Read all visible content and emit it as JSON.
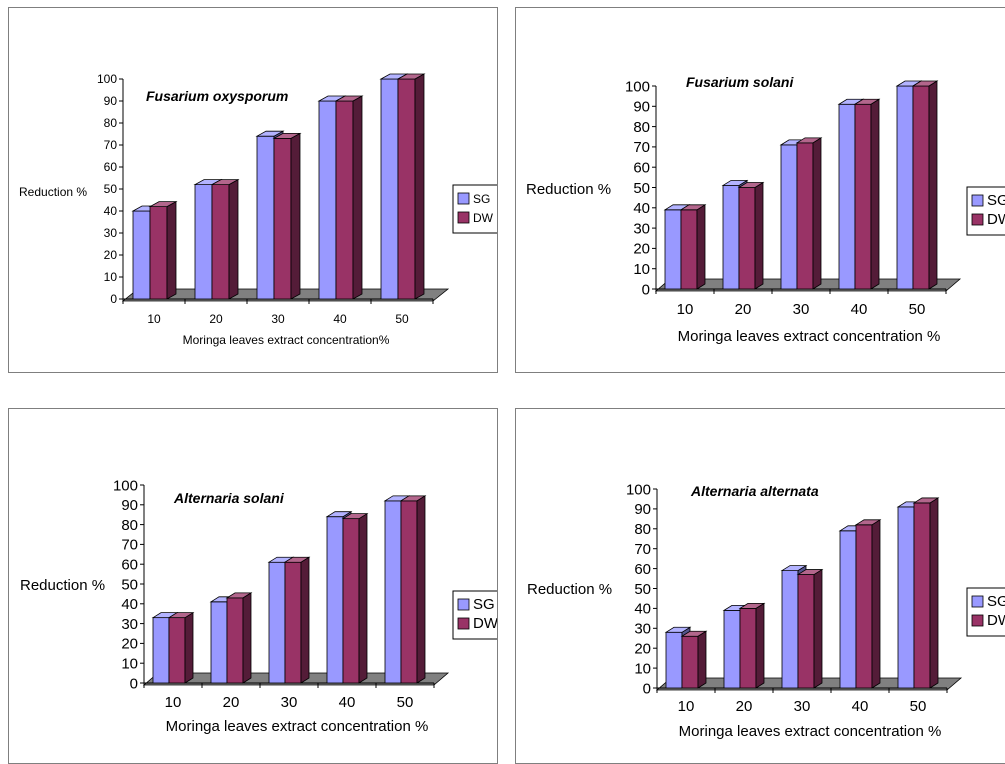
{
  "colors": {
    "sg": "#9999ff",
    "dw": "#993366",
    "floor": "#808080"
  },
  "chart_data": [
    {
      "type": "bar",
      "title": "Fusarium oxysporum",
      "xlabel": "Moringa leaves extract concentration%",
      "ylabel": "Reduction %",
      "categories": [
        "10",
        "20",
        "30",
        "40",
        "50"
      ],
      "ylim": [
        0,
        100
      ],
      "yticks": [
        "0",
        "10",
        "20",
        "30",
        "40",
        "50",
        "60",
        "70",
        "80",
        "90",
        "100"
      ],
      "legend_position": "right",
      "grid": false,
      "series": [
        {
          "name": "SG",
          "values": [
            40,
            52,
            74,
            90,
            100
          ]
        },
        {
          "name": "DW",
          "values": [
            42,
            52,
            73,
            90,
            100
          ]
        }
      ]
    },
    {
      "type": "bar",
      "title": "Fusarium solani",
      "xlabel": "Moringa leaves extract concentration %",
      "ylabel": "Reduction %",
      "categories": [
        "10",
        "20",
        "30",
        "40",
        "50"
      ],
      "ylim": [
        0,
        100
      ],
      "yticks": [
        "0",
        "10",
        "20",
        "30",
        "40",
        "50",
        "60",
        "70",
        "80",
        "90",
        "100"
      ],
      "legend_position": "right",
      "grid": false,
      "series": [
        {
          "name": "SG",
          "values": [
            39,
            51,
            71,
            91,
            100
          ]
        },
        {
          "name": "DW",
          "values": [
            39,
            50,
            72,
            91,
            100
          ]
        }
      ]
    },
    {
      "type": "bar",
      "title": "Alternaria solani",
      "xlabel": "Moringa leaves extract concentration %",
      "ylabel": "Reduction %",
      "categories": [
        "10",
        "20",
        "30",
        "40",
        "50"
      ],
      "ylim": [
        0,
        100
      ],
      "yticks": [
        "0",
        "10",
        "20",
        "30",
        "40",
        "50",
        "60",
        "70",
        "80",
        "90",
        "100"
      ],
      "legend_position": "right",
      "grid": false,
      "series": [
        {
          "name": "SG",
          "values": [
            33,
            41,
            61,
            84,
            92
          ]
        },
        {
          "name": "DW",
          "values": [
            33,
            43,
            61,
            83,
            92
          ]
        }
      ]
    },
    {
      "type": "bar",
      "title": "Alternaria alternata",
      "xlabel": "Moringa leaves extract concentration %",
      "ylabel": "Reduction %",
      "categories": [
        "10",
        "20",
        "30",
        "40",
        "50"
      ],
      "ylim": [
        0,
        100
      ],
      "yticks": [
        "0",
        "10",
        "20",
        "30",
        "40",
        "50",
        "60",
        "70",
        "80",
        "90",
        "100"
      ],
      "legend_position": "right",
      "grid": false,
      "series": [
        {
          "name": "SG",
          "values": [
            28,
            39,
            59,
            79,
            91
          ]
        },
        {
          "name": "DW",
          "values": [
            26,
            40,
            57,
            82,
            93
          ]
        }
      ]
    }
  ]
}
